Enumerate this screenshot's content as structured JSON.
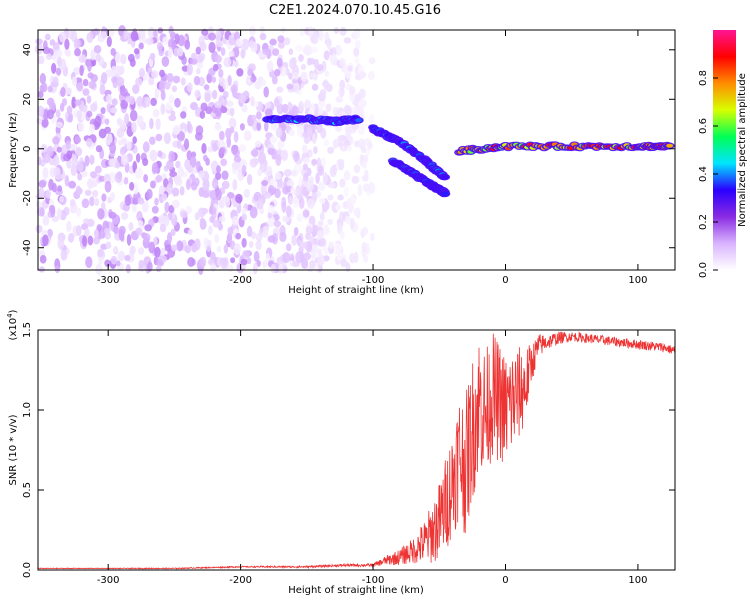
{
  "figure_title": "C2E1.2024.070.10.45.G16",
  "chart_data": [
    {
      "type": "heatmap",
      "title": "C2E1.2024.070.10.45.G16",
      "xlabel": "Height of straight line (km)",
      "ylabel": "Frequency (Hz)",
      "xlim": [
        -353,
        128
      ],
      "ylim": [
        -49,
        48
      ],
      "x_ticks": [
        -300,
        -200,
        -100,
        0,
        100
      ],
      "y_ticks": [
        -40,
        -20,
        0,
        20,
        40
      ],
      "colorbar": {
        "label": "Normalized spectral amplitude",
        "range": [
          0.0,
          1.0
        ],
        "ticks": [
          0.0,
          0.2,
          0.4,
          0.6,
          0.8
        ],
        "tick_labels": [
          "0.0",
          "0.2",
          "0.4",
          "0.6",
          "0.8"
        ],
        "colormap": [
          "#ffffff",
          "#d9b3ff",
          "#8a2be2",
          "#2a00ff",
          "#00e5ff",
          "#00ff55",
          "#d8ff00",
          "#ff8c00",
          "#ff0000",
          "#ff1493"
        ]
      },
      "features": [
        {
          "name": "noise",
          "x_range": [
            -353,
            -100
          ],
          "y_range": [
            -49,
            48
          ],
          "amplitude": 0.1
        },
        {
          "name": "signal-upper",
          "x": [
            -180,
            -150,
            -130,
            -110
          ],
          "y": [
            12,
            12,
            11,
            12
          ],
          "amplitude": 0.4
        },
        {
          "name": "signal-descending",
          "x": [
            -100,
            -80,
            -60,
            -45
          ],
          "y": [
            8,
            3,
            -5,
            -12
          ],
          "amplitude": 0.35
        },
        {
          "name": "signal-lower",
          "x": [
            -85,
            -70,
            -55,
            -45
          ],
          "y": [
            -5,
            -10,
            -15,
            -18
          ],
          "amplitude": 0.35
        },
        {
          "name": "signal-flat",
          "x": [
            -35,
            0,
            50,
            100,
            125
          ],
          "y": [
            -1,
            1,
            1,
            1,
            1
          ],
          "amplitude": 0.8
        }
      ],
      "grid": false,
      "legend": "none"
    },
    {
      "type": "line",
      "xlabel": "Height of straight line (km)",
      "ylabel": "SNR (10 * v/v)",
      "y_scale_label": "(x10",
      "y_scale_exponent": "4",
      "y_scale_suffix": ")",
      "xlim": [
        -353,
        128
      ],
      "ylim": [
        0,
        1.5
      ],
      "x_ticks": [
        -300,
        -200,
        -100,
        0,
        100
      ],
      "y_ticks": [
        0.0,
        0.5,
        1.0,
        1.5
      ],
      "y_tick_labels": [
        "0.0",
        "0.5",
        "1.0",
        "1.5"
      ],
      "series": [
        {
          "color": "#ee3333",
          "x": [
            -353,
            -300,
            -250,
            -200,
            -150,
            -120,
            -100,
            -90,
            -80,
            -70,
            -60,
            -50,
            -45,
            -40,
            -35,
            -30,
            -25,
            -20,
            -15,
            -10,
            -5,
            0,
            5,
            10,
            15,
            20,
            25,
            30,
            40,
            50,
            60,
            70,
            80,
            90,
            100,
            110,
            120,
            128
          ],
          "values": [
            0.01,
            0.01,
            0.01,
            0.02,
            0.02,
            0.03,
            0.03,
            0.06,
            0.08,
            0.12,
            0.18,
            0.3,
            0.42,
            0.55,
            0.72,
            0.65,
            0.88,
            1.05,
            0.98,
            1.1,
            1.05,
            1.0,
            1.05,
            1.1,
            1.15,
            1.3,
            1.4,
            1.42,
            1.45,
            1.46,
            1.45,
            1.44,
            1.43,
            1.42,
            1.41,
            1.4,
            1.39,
            1.37
          ],
          "noise_spread": [
            0.002,
            0.002,
            0.003,
            0.004,
            0.006,
            0.008,
            0.01,
            0.03,
            0.05,
            0.08,
            0.15,
            0.25,
            0.3,
            0.35,
            0.4,
            0.45,
            0.45,
            0.45,
            0.4,
            0.4,
            0.38,
            0.35,
            0.35,
            0.3,
            0.25,
            0.12,
            0.08,
            0.05,
            0.04,
            0.03,
            0.03,
            0.03,
            0.03,
            0.03,
            0.03,
            0.03,
            0.03,
            0.03
          ]
        }
      ],
      "grid": false,
      "legend": "none"
    }
  ]
}
